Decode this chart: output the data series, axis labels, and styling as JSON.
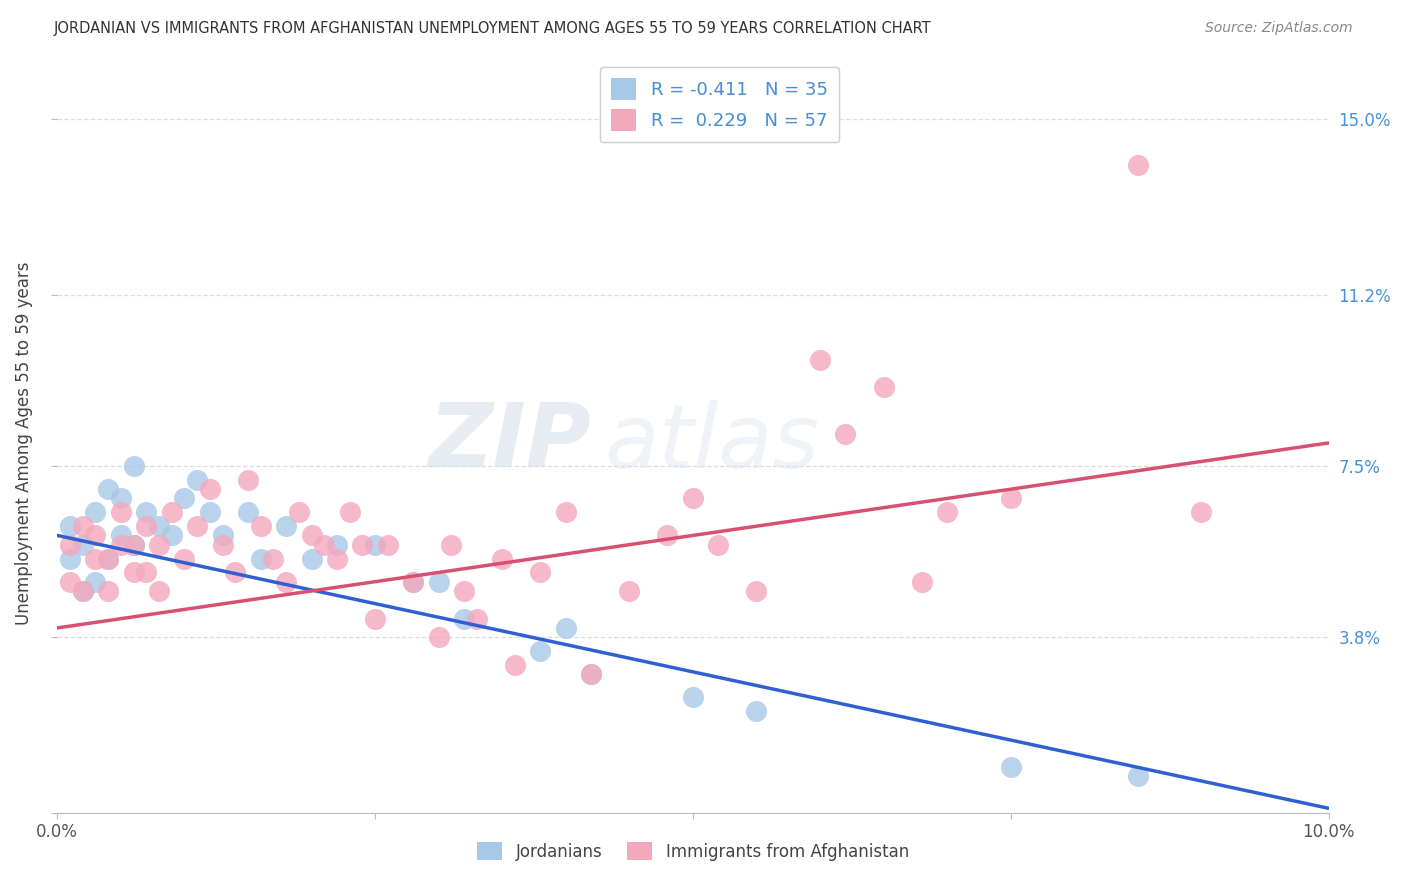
{
  "title": "JORDANIAN VS IMMIGRANTS FROM AFGHANISTAN UNEMPLOYMENT AMONG AGES 55 TO 59 YEARS CORRELATION CHART",
  "source": "Source: ZipAtlas.com",
  "ylabel": "Unemployment Among Ages 55 to 59 years",
  "xmin": 0.0,
  "xmax": 0.1,
  "ymin": 0.0,
  "ymax": 0.16,
  "ytick_positions": [
    0.0,
    0.038,
    0.075,
    0.112,
    0.15
  ],
  "ytick_labels": [
    "",
    "3.8%",
    "7.5%",
    "11.2%",
    "15.0%"
  ],
  "xtick_positions": [
    0.0,
    0.025,
    0.05,
    0.075,
    0.1
  ],
  "xtick_labels": [
    "0.0%",
    "",
    "",
    "",
    "10.0%"
  ],
  "watermark_zip": "ZIP",
  "watermark_atlas": "atlas",
  "jordanians_R": -0.411,
  "jordanians_N": 35,
  "afghanistan_R": 0.229,
  "afghanistan_N": 57,
  "jordanians_scatter_color": "#a8c8e8",
  "afghanistan_scatter_color": "#f4a8bc",
  "jordanians_line_color": "#3060d0",
  "afghanistan_line_color": "#d85070",
  "tick_color": "#4a90d9",
  "title_color": "#333333",
  "source_color": "#888888",
  "grid_color": "#dddddd",
  "background_color": "#ffffff",
  "blue_line_start_y": 0.06,
  "blue_line_end_y": 0.001,
  "pink_line_start_y": 0.04,
  "pink_line_end_y": 0.08,
  "jordanians_x": [
    0.001,
    0.001,
    0.002,
    0.002,
    0.003,
    0.003,
    0.004,
    0.004,
    0.005,
    0.005,
    0.006,
    0.006,
    0.007,
    0.008,
    0.009,
    0.01,
    0.011,
    0.012,
    0.013,
    0.015,
    0.016,
    0.018,
    0.02,
    0.022,
    0.025,
    0.028,
    0.03,
    0.032,
    0.038,
    0.04,
    0.042,
    0.05,
    0.055,
    0.075,
    0.085
  ],
  "jordanians_y": [
    0.062,
    0.055,
    0.058,
    0.048,
    0.065,
    0.05,
    0.07,
    0.055,
    0.068,
    0.06,
    0.075,
    0.058,
    0.065,
    0.062,
    0.06,
    0.068,
    0.072,
    0.065,
    0.06,
    0.065,
    0.055,
    0.062,
    0.055,
    0.058,
    0.058,
    0.05,
    0.05,
    0.042,
    0.035,
    0.04,
    0.03,
    0.025,
    0.022,
    0.01,
    0.008
  ],
  "afghanistan_x": [
    0.001,
    0.001,
    0.002,
    0.002,
    0.003,
    0.003,
    0.004,
    0.004,
    0.005,
    0.005,
    0.006,
    0.006,
    0.007,
    0.007,
    0.008,
    0.008,
    0.009,
    0.01,
    0.011,
    0.012,
    0.013,
    0.014,
    0.015,
    0.016,
    0.017,
    0.018,
    0.019,
    0.02,
    0.021,
    0.022,
    0.023,
    0.024,
    0.025,
    0.026,
    0.028,
    0.03,
    0.031,
    0.032,
    0.033,
    0.035,
    0.036,
    0.038,
    0.04,
    0.042,
    0.045,
    0.048,
    0.05,
    0.052,
    0.055,
    0.06,
    0.062,
    0.065,
    0.068,
    0.07,
    0.075,
    0.085,
    0.09
  ],
  "afghanistan_y": [
    0.058,
    0.05,
    0.062,
    0.048,
    0.06,
    0.055,
    0.055,
    0.048,
    0.065,
    0.058,
    0.058,
    0.052,
    0.062,
    0.052,
    0.058,
    0.048,
    0.065,
    0.055,
    0.062,
    0.07,
    0.058,
    0.052,
    0.072,
    0.062,
    0.055,
    0.05,
    0.065,
    0.06,
    0.058,
    0.055,
    0.065,
    0.058,
    0.042,
    0.058,
    0.05,
    0.038,
    0.058,
    0.048,
    0.042,
    0.055,
    0.032,
    0.052,
    0.065,
    0.03,
    0.048,
    0.06,
    0.068,
    0.058,
    0.048,
    0.098,
    0.082,
    0.092,
    0.05,
    0.065,
    0.068,
    0.14,
    0.065
  ]
}
